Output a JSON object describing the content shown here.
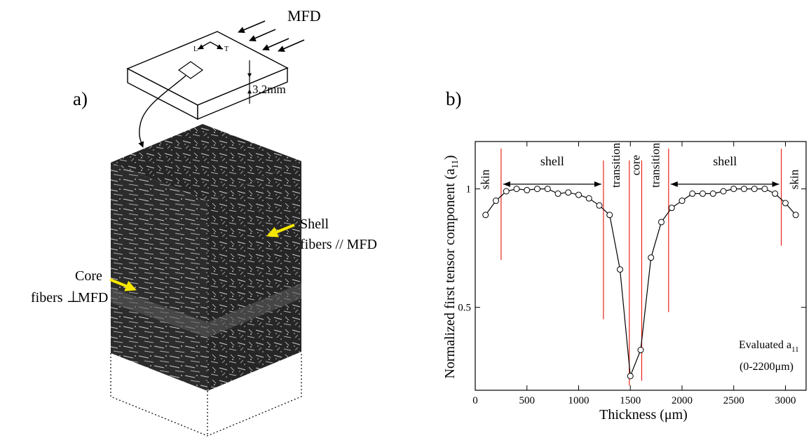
{
  "panel_a": {
    "label": "a)",
    "flow_label": "MFD",
    "thickness_label": "3.2mm",
    "dir_L": "L",
    "dir_T": "T",
    "shell_line1": "Shell",
    "shell_line2": "fibers // MFD",
    "core_line1": "Core",
    "core_line2_a": "fibers",
    "core_line2_b": "MFD",
    "perp_symbol": "⊥",
    "arrow_color": "#f5e600"
  },
  "panel_b": {
    "label": "b)"
  },
  "chart_data": {
    "type": "line",
    "xlabel": "Thickness (μm)",
    "ylabel_main": "Normalized first tensor component (a",
    "ylabel_sub": "11",
    "ylabel_end": ")",
    "xlim": [
      0,
      3200
    ],
    "ylim": [
      0.15,
      1.2
    ],
    "x_ticks": [
      0,
      500,
      1000,
      1500,
      2000,
      2500,
      3000
    ],
    "y_ticks": [
      0.5,
      1
    ],
    "marker": "open-circle",
    "line_color": "#000000",
    "boundary_color": "#e8251c",
    "series": [
      {
        "x": [
          100,
          200,
          300,
          400,
          500,
          600,
          700,
          800,
          900,
          1000,
          1100,
          1200,
          1300,
          1400,
          1500,
          1600,
          1700,
          1800,
          1900,
          2000,
          2100,
          2200,
          2300,
          2400,
          2500,
          2600,
          2700,
          2800,
          2900,
          3000,
          3100
        ],
        "y": [
          0.89,
          0.95,
          0.99,
          1.0,
          0.995,
          1.0,
          1.0,
          0.98,
          0.985,
          0.975,
          0.96,
          0.93,
          0.89,
          0.66,
          0.21,
          0.32,
          0.71,
          0.86,
          0.92,
          0.95,
          0.98,
          0.98,
          0.98,
          0.99,
          1.0,
          1.0,
          1.0,
          1.0,
          0.98,
          0.94,
          0.89
        ]
      }
    ],
    "boundaries": [
      {
        "x": 250,
        "y_top": 1.17,
        "y_bottom": 0.7
      },
      {
        "x": 1240,
        "y_top": 1.12,
        "y_bottom": 0.45
      },
      {
        "x": 1490,
        "y_top": 1.12,
        "y_bottom": 0.17
      },
      {
        "x": 1610,
        "y_top": 1.12,
        "y_bottom": 0.19
      },
      {
        "x": 1870,
        "y_top": 1.17,
        "y_bottom": 0.48
      },
      {
        "x": 2960,
        "y_top": 1.17,
        "y_bottom": 0.76
      }
    ],
    "regions": [
      {
        "label": "skin",
        "x": 90,
        "y": 1.04,
        "vertical": true
      },
      {
        "label": "shell",
        "x": 745,
        "y": 1.1,
        "vertical": false,
        "from": 250,
        "to": 1240
      },
      {
        "label": "transition",
        "x": 1355,
        "y": 1.1,
        "vertical": true
      },
      {
        "label": "core",
        "x": 1550,
        "y": 1.1,
        "vertical": true
      },
      {
        "label": "transition",
        "x": 1740,
        "y": 1.1,
        "vertical": true
      },
      {
        "label": "shell",
        "x": 2415,
        "y": 1.1,
        "vertical": false,
        "from": 1870,
        "to": 2960
      },
      {
        "label": "skin",
        "x": 3080,
        "y": 1.04,
        "vertical": true
      }
    ],
    "annotation": {
      "line1_main": "Evaluated a",
      "line1_sub": "11",
      "line2": "(0-2200μm)"
    }
  }
}
